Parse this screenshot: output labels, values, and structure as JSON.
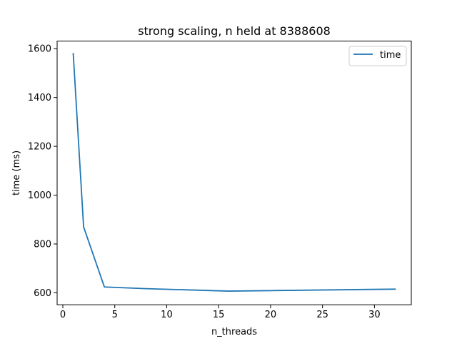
{
  "chart_data": {
    "type": "line",
    "title": "strong scaling, n held at 8388608",
    "xlabel": "n_threads",
    "ylabel": "time (ms)",
    "xlim": [
      -0.55,
      33.55
    ],
    "ylim": [
      551,
      1631
    ],
    "xticks": [
      0,
      5,
      10,
      15,
      20,
      25,
      30
    ],
    "yticks": [
      600,
      800,
      1000,
      1200,
      1400,
      1600
    ],
    "grid": false,
    "legend_position": "top-right",
    "series": [
      {
        "name": "time",
        "color": "#1f77b4",
        "x": [
          1,
          2,
          4,
          8,
          16,
          32
        ],
        "y": [
          1580,
          870,
          624,
          617,
          607,
          615
        ]
      }
    ]
  }
}
